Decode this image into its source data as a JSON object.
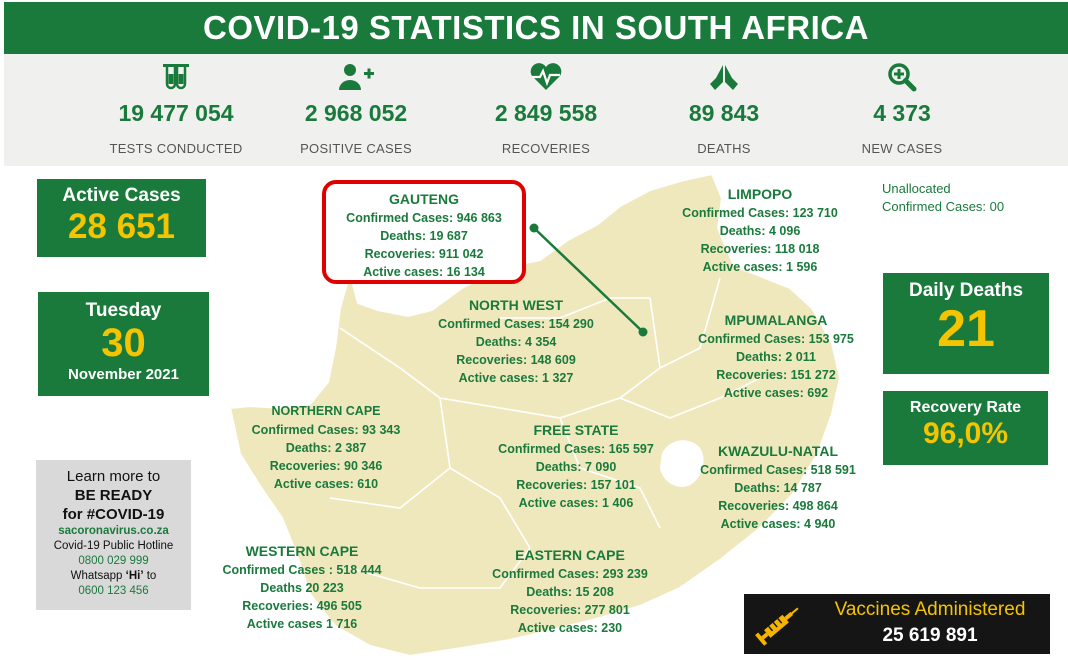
{
  "title": "COVID-19 STATISTICS IN SOUTH AFRICA",
  "stats": [
    {
      "icon": "test-tubes-icon",
      "value": "19 477 054",
      "label": "TESTS CONDUCTED"
    },
    {
      "icon": "add-user-icon",
      "value": "2 968 052",
      "label": "POSITIVE CASES"
    },
    {
      "icon": "heart-pulse-icon",
      "value": "2 849 558",
      "label": "RECOVERIES"
    },
    {
      "icon": "praying-hands-icon",
      "value": "89 843",
      "label": "DEATHS"
    },
    {
      "icon": "zoom-plus-icon",
      "value": "4 373",
      "label": "NEW CASES"
    }
  ],
  "active_cases": {
    "label": "Active Cases",
    "value": "28 651"
  },
  "date": {
    "weekday": "Tuesday",
    "day": "30",
    "month_year": "November 2021"
  },
  "daily_deaths": {
    "label": "Daily Deaths",
    "value": "21"
  },
  "recovery_rate": {
    "label": "Recovery Rate",
    "value": "96,0%"
  },
  "unallocated": {
    "line1": "Unallocated",
    "line2": "Confirmed Cases: 00"
  },
  "provinces": {
    "gauteng": {
      "name": "GAUTENG",
      "l1": "Confirmed Cases: 946 863",
      "l2": "Deaths: 19 687",
      "l3": "Recoveries: 911 042",
      "l4": "Active cases: 16 134"
    },
    "limpopo": {
      "name": "LIMPOPO",
      "l1": "Confirmed Cases: 123 710",
      "l2": "Deaths:  4 096",
      "l3": "Recoveries: 118 018",
      "l4": "Active cases: 1 596"
    },
    "north_west": {
      "name": "NORTH WEST",
      "l1": "Confirmed Cases: 154 290",
      "l2": "Deaths: 4 354",
      "l3": "Recoveries: 148 609",
      "l4": "Active cases: 1 327"
    },
    "mpumalanga": {
      "name": "MPUMALANGA",
      "l1": "Confirmed Cases: 153 975",
      "l2": "Deaths:  2 011",
      "l3": "Recoveries: 151 272",
      "l4": "Active cases: 692"
    },
    "northern_cape": {
      "name": "NORTHERN CAPE",
      "l1": "Confirmed Cases:  93 343",
      "l2": "Deaths: 2 387",
      "l3": "Recoveries: 90 346",
      "l4": "Active cases: 610"
    },
    "free_state": {
      "name": "FREE STATE",
      "l1": "Confirmed Cases: 165 597",
      "l2": "Deaths: 7 090",
      "l3": "Recoveries: 157 101",
      "l4": "Active cases: 1 406"
    },
    "kwazulu_natal": {
      "name": "KWAZULU-NATAL",
      "l1": "Confirmed Cases: 518 591",
      "l2": "Deaths: 14 787",
      "l3": "Recoveries: 498 864",
      "l4": "Active cases: 4 940"
    },
    "western_cape": {
      "name": "WESTERN CAPE",
      "l1": "Confirmed Cases : 518 444",
      "l2": "Deaths 20 223",
      "l3": "Recoveries: 496 505",
      "l4": "Active cases 1 716"
    },
    "eastern_cape": {
      "name": "EASTERN CAPE",
      "l1": "Confirmed Cases: 293 239",
      "l2": "Deaths: 15 208",
      "l3": "Recoveries: 277 801",
      "l4": "Active cases: 230"
    }
  },
  "learn_more": {
    "l1": "Learn more to",
    "l2": "BE READY",
    "l3": "for #COVID-19",
    "site": "sacoronavirus.co.za",
    "hotline_label": "Covid-19 Public Hotline",
    "hotline": "0800 029 999",
    "whatsapp_label_pre": "Whatsapp ",
    "whatsapp_hi": "‘Hi’",
    "whatsapp_label_post": " to",
    "whatsapp": "0600 123 456"
  },
  "vaccines": {
    "label": "Vaccines Administered",
    "value": "25 619 891",
    "icon": "syringe-icon"
  },
  "colors": {
    "green": "#1a7a3c",
    "yellow": "#f5c400",
    "red": "#e00000",
    "map": "#f0e8bd"
  }
}
